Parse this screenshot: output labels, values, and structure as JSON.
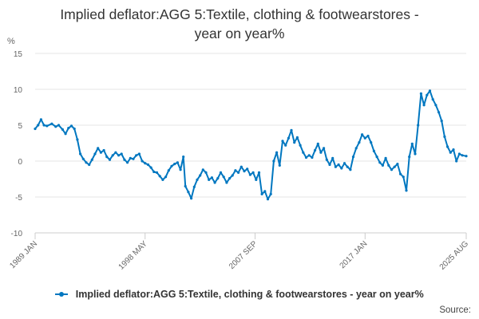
{
  "chart_data": {
    "type": "line",
    "title_lines": [
      "Implied deflator:AGG 5:Textile, clothing & footwearstores -",
      "year on year%"
    ],
    "ylabel": "%",
    "xlabel": "",
    "ylim": [
      -10,
      15
    ],
    "yticks": [
      15,
      10,
      5,
      0,
      -5,
      -10
    ],
    "xlim": [
      "1989-01",
      "2025-08"
    ],
    "xticks": [
      {
        "label": "1989 JAN",
        "date": "1989-01"
      },
      {
        "label": "1998 MAY",
        "date": "1998-05"
      },
      {
        "label": "2007 SEP",
        "date": "2007-09"
      },
      {
        "label": "2017 JAN",
        "date": "2017-01"
      },
      {
        "label": "2025 AUG",
        "date": "2025-08"
      }
    ],
    "grid": true,
    "legend_position": "bottom",
    "color": "#0077c0",
    "series": [
      {
        "name": "Implied deflator:AGG 5:Textile, clothing & footwearstores - year on year%",
        "points": [
          [
            "1989-01",
            4.5
          ],
          [
            "1989-04",
            5.0
          ],
          [
            "1989-07",
            5.8
          ],
          [
            "1989-10",
            5.0
          ],
          [
            "1990-01",
            4.9
          ],
          [
            "1990-06",
            5.2
          ],
          [
            "1990-10",
            4.8
          ],
          [
            "1991-01",
            5.0
          ],
          [
            "1991-05",
            4.4
          ],
          [
            "1991-08",
            3.8
          ],
          [
            "1991-11",
            4.6
          ],
          [
            "1992-02",
            4.9
          ],
          [
            "1992-05",
            4.5
          ],
          [
            "1992-08",
            3.0
          ],
          [
            "1992-11",
            1.0
          ],
          [
            "1993-02",
            0.3
          ],
          [
            "1993-05",
            -0.2
          ],
          [
            "1993-08",
            -0.5
          ],
          [
            "1993-11",
            0.2
          ],
          [
            "1994-02",
            1.0
          ],
          [
            "1994-05",
            1.8
          ],
          [
            "1994-08",
            1.2
          ],
          [
            "1994-11",
            1.5
          ],
          [
            "1995-02",
            0.6
          ],
          [
            "1995-05",
            0.2
          ],
          [
            "1995-08",
            0.8
          ],
          [
            "1995-11",
            1.2
          ],
          [
            "1996-02",
            0.8
          ],
          [
            "1996-05",
            1.0
          ],
          [
            "1996-08",
            0.2
          ],
          [
            "1996-11",
            -0.2
          ],
          [
            "1997-02",
            0.4
          ],
          [
            "1997-05",
            0.3
          ],
          [
            "1997-08",
            0.8
          ],
          [
            "1997-11",
            1.0
          ],
          [
            "1998-02",
            0.0
          ],
          [
            "1998-05",
            -0.3
          ],
          [
            "1998-08",
            -0.5
          ],
          [
            "1998-11",
            -0.9
          ],
          [
            "1999-02",
            -1.5
          ],
          [
            "1999-05",
            -1.6
          ],
          [
            "1999-08",
            -2.1
          ],
          [
            "1999-11",
            -2.6
          ],
          [
            "2000-02",
            -2.2
          ],
          [
            "2000-05",
            -1.3
          ],
          [
            "2000-08",
            -0.7
          ],
          [
            "2000-11",
            -0.4
          ],
          [
            "2001-02",
            -0.2
          ],
          [
            "2001-05",
            -1.2
          ],
          [
            "2001-08",
            0.6
          ],
          [
            "2001-10",
            -3.5
          ],
          [
            "2002-01",
            -4.3
          ],
          [
            "2002-04",
            -5.2
          ],
          [
            "2002-07",
            -3.6
          ],
          [
            "2002-10",
            -2.6
          ],
          [
            "2003-01",
            -2.0
          ],
          [
            "2003-04",
            -1.2
          ],
          [
            "2003-07",
            -1.6
          ],
          [
            "2003-10",
            -2.6
          ],
          [
            "2004-01",
            -2.3
          ],
          [
            "2004-04",
            -3.0
          ],
          [
            "2004-07",
            -2.4
          ],
          [
            "2004-10",
            -1.6
          ],
          [
            "2005-01",
            -2.2
          ],
          [
            "2005-04",
            -3.0
          ],
          [
            "2005-07",
            -2.4
          ],
          [
            "2005-10",
            -2.0
          ],
          [
            "2006-01",
            -1.3
          ],
          [
            "2006-04",
            -1.6
          ],
          [
            "2006-07",
            -0.8
          ],
          [
            "2006-10",
            -1.4
          ],
          [
            "2007-01",
            -1.1
          ],
          [
            "2007-04",
            -1.9
          ],
          [
            "2007-07",
            -1.6
          ],
          [
            "2007-10",
            -2.6
          ],
          [
            "2008-01",
            -1.6
          ],
          [
            "2008-04",
            -4.6
          ],
          [
            "2008-07",
            -4.2
          ],
          [
            "2008-10",
            -5.3
          ],
          [
            "2009-01",
            -4.6
          ],
          [
            "2009-04",
            0.0
          ],
          [
            "2009-07",
            1.2
          ],
          [
            "2009-10",
            -0.6
          ],
          [
            "2010-01",
            2.8
          ],
          [
            "2010-04",
            2.2
          ],
          [
            "2010-07",
            3.2
          ],
          [
            "2010-10",
            4.3
          ],
          [
            "2011-01",
            2.6
          ],
          [
            "2011-04",
            3.3
          ],
          [
            "2011-07",
            2.2
          ],
          [
            "2011-10",
            1.2
          ],
          [
            "2012-01",
            0.5
          ],
          [
            "2012-04",
            0.8
          ],
          [
            "2012-07",
            0.5
          ],
          [
            "2012-10",
            1.5
          ],
          [
            "2013-01",
            2.4
          ],
          [
            "2013-04",
            1.2
          ],
          [
            "2013-07",
            1.8
          ],
          [
            "2013-10",
            0.2
          ],
          [
            "2014-01",
            -0.5
          ],
          [
            "2014-04",
            0.4
          ],
          [
            "2014-07",
            -0.8
          ],
          [
            "2014-10",
            -0.5
          ],
          [
            "2015-01",
            -1.0
          ],
          [
            "2015-04",
            -0.3
          ],
          [
            "2015-07",
            -0.8
          ],
          [
            "2015-10",
            -1.2
          ],
          [
            "2016-01",
            0.6
          ],
          [
            "2016-04",
            1.8
          ],
          [
            "2016-07",
            2.6
          ],
          [
            "2016-10",
            3.7
          ],
          [
            "2017-01",
            3.2
          ],
          [
            "2017-04",
            3.5
          ],
          [
            "2017-07",
            2.6
          ],
          [
            "2017-10",
            1.4
          ],
          [
            "2018-01",
            0.6
          ],
          [
            "2018-04",
            -0.2
          ],
          [
            "2018-07",
            -0.6
          ],
          [
            "2018-10",
            0.4
          ],
          [
            "2019-01",
            -0.6
          ],
          [
            "2019-04",
            -1.2
          ],
          [
            "2019-07",
            -0.8
          ],
          [
            "2019-10",
            -0.4
          ],
          [
            "2020-01",
            -1.8
          ],
          [
            "2020-04",
            -2.2
          ],
          [
            "2020-07",
            -4.1
          ],
          [
            "2020-10",
            0.6
          ],
          [
            "2021-01",
            2.4
          ],
          [
            "2021-04",
            1.0
          ],
          [
            "2021-07",
            5.0
          ],
          [
            "2021-10",
            9.4
          ],
          [
            "2022-01",
            7.8
          ],
          [
            "2022-04",
            9.2
          ],
          [
            "2022-07",
            9.8
          ],
          [
            "2022-10",
            8.6
          ],
          [
            "2023-01",
            7.8
          ],
          [
            "2023-04",
            6.8
          ],
          [
            "2023-07",
            5.6
          ],
          [
            "2023-10",
            3.4
          ],
          [
            "2024-01",
            2.0
          ],
          [
            "2024-04",
            1.2
          ],
          [
            "2024-07",
            1.6
          ],
          [
            "2024-10",
            0.0
          ],
          [
            "2025-01",
            1.0
          ],
          [
            "2025-04",
            0.8
          ],
          [
            "2025-08",
            0.7
          ]
        ]
      }
    ]
  },
  "source_label": "Source:"
}
